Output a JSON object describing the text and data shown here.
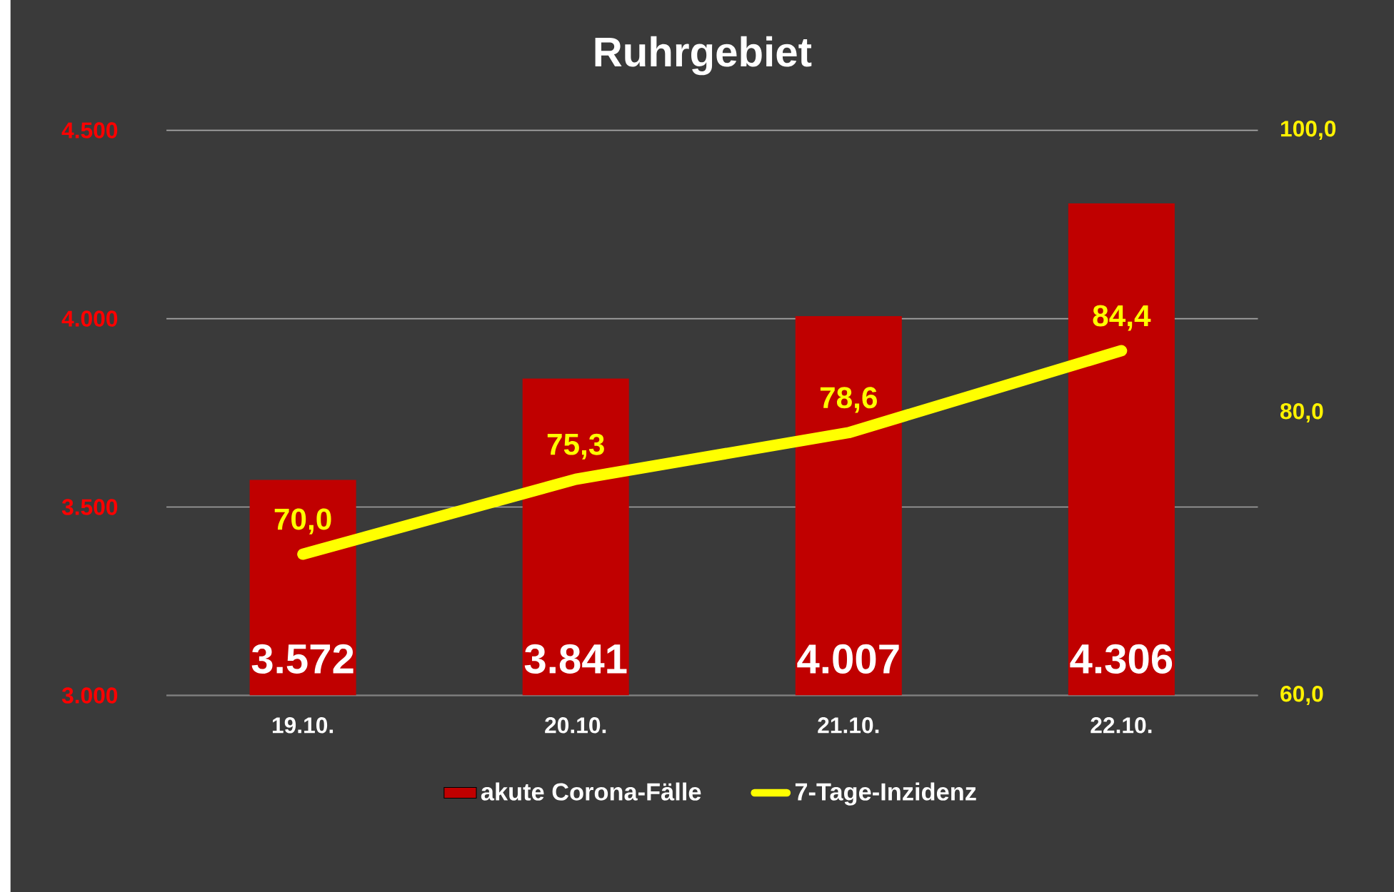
{
  "chart_data": {
    "type": "bar",
    "title": "Ruhrgebiet",
    "categories": [
      "19.10.",
      "20.10.",
      "21.10.",
      "22.10."
    ],
    "series": [
      {
        "name": "akute Corona-Fälle",
        "type": "bar",
        "color": "#c00000",
        "values": [
          3572,
          3841,
          4007,
          4306
        ],
        "value_labels": [
          "3.572",
          "3.841",
          "4.007",
          "4.306"
        ]
      },
      {
        "name": "7-Tage-Inzidenz",
        "type": "line",
        "axis": "y2",
        "color": "#ffff00",
        "values": [
          70.0,
          75.3,
          78.6,
          84.4
        ],
        "value_labels": [
          "70,0",
          "75,3",
          "78,6",
          "84,4"
        ]
      }
    ],
    "ylim": [
      3000,
      4500
    ],
    "yticks": [
      {
        "value": 3000,
        "label": "3.000"
      },
      {
        "value": 3500,
        "label": "3.500"
      },
      {
        "value": 4000,
        "label": "4.000"
      },
      {
        "value": 4500,
        "label": "4.500"
      }
    ],
    "y2lim": [
      60,
      100
    ],
    "y2ticks": [
      {
        "value": 60,
        "label": "60,0"
      },
      {
        "value": 80,
        "label": "80,0"
      },
      {
        "value": 100,
        "label": "100,0"
      }
    ],
    "grid": "y",
    "legend": "bottom",
    "marker": "none"
  }
}
